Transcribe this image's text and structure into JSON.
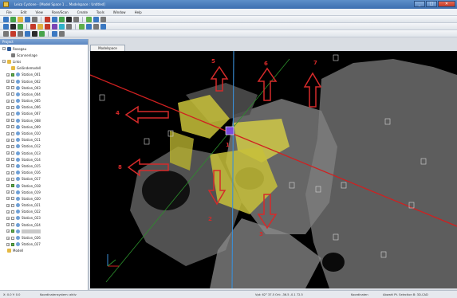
{
  "titlebar": {
    "title": "Leica Cyclone - [Model Space 1 ... Modelspace : Untitled]",
    "minimize": "_",
    "maximize": "□",
    "close": "✕"
  },
  "menu": [
    "File",
    "Edit",
    "View",
    "Rose/Scan",
    "Create",
    "Tools",
    "Window",
    "Help"
  ],
  "toolbar_colors": {
    "row1": [
      "#3a78c2",
      "#46a34a",
      "#e0b040",
      "#3a78c2",
      "#777777",
      "sep",
      "#c43a2a",
      "#3a78c2",
      "#46a34a",
      "#2b2b2b",
      "#777777",
      "sep",
      "#5fae4a",
      "#3a78c2",
      "#777777"
    ],
    "row2": [
      "#3a78c2",
      "#2b2b2b",
      "#46a34a",
      "sep",
      "#c43a2a",
      "#e0b040",
      "#c43a2a",
      "#7a44b5",
      "#2fb1c9",
      "#777777",
      "sep",
      "#5fae4a",
      "#3a78c2",
      "#777777",
      "#3a78c2"
    ],
    "row3": [
      "#777777",
      "#c43a2a",
      "#777777",
      "#3a78c2",
      "#2b2b2b",
      "#46a34a",
      "sep",
      "#3a78c2",
      "#777777"
    ]
  },
  "panel": {
    "title": "Project",
    "tree": [
      {
        "label": "Rosogau",
        "level": 0,
        "expander": "−",
        "icon": "proj",
        "check": null
      },
      {
        "label": "Scannenlage",
        "level": 1,
        "expander": "",
        "icon": "geo",
        "check": null
      },
      {
        "label": "Links",
        "level": 0,
        "expander": "−",
        "icon": "folder",
        "check": null
      },
      {
        "label": "Geländemodell",
        "level": 1,
        "expander": "",
        "icon": "folder",
        "check": null
      },
      {
        "label": "Station_001",
        "level": 1,
        "expander": "+",
        "icon": "scan",
        "check": true
      },
      {
        "label": "Station_002",
        "level": 1,
        "expander": "+",
        "icon": "scan",
        "check": false
      },
      {
        "label": "Station_003",
        "level": 1,
        "expander": "+",
        "icon": "scan",
        "check": false
      },
      {
        "label": "Station_004",
        "level": 1,
        "expander": "+",
        "icon": "scan",
        "check": false
      },
      {
        "label": "Station_005",
        "level": 1,
        "expander": "+",
        "icon": "scan",
        "check": false
      },
      {
        "label": "Station_006",
        "level": 1,
        "expander": "+",
        "icon": "scan",
        "check": false
      },
      {
        "label": "Station_007",
        "level": 1,
        "expander": "+",
        "icon": "scan",
        "check": false
      },
      {
        "label": "Station_008",
        "level": 1,
        "expander": "+",
        "icon": "scan",
        "check": false
      },
      {
        "label": "Station_009",
        "level": 1,
        "expander": "+",
        "icon": "scan",
        "check": false
      },
      {
        "label": "Station_010",
        "level": 1,
        "expander": "+",
        "icon": "scan",
        "check": false
      },
      {
        "label": "Station_011",
        "level": 1,
        "expander": "+",
        "icon": "scan",
        "check": false
      },
      {
        "label": "Station_012",
        "level": 1,
        "expander": "+",
        "icon": "scan",
        "check": false
      },
      {
        "label": "Station_013",
        "level": 1,
        "expander": "+",
        "icon": "scan",
        "check": false
      },
      {
        "label": "Station_014",
        "level": 1,
        "expander": "+",
        "icon": "scan",
        "check": false
      },
      {
        "label": "Station_015",
        "level": 1,
        "expander": "+",
        "icon": "scan",
        "check": false
      },
      {
        "label": "Station_016",
        "level": 1,
        "expander": "+",
        "icon": "scan",
        "check": false
      },
      {
        "label": "Station_017",
        "level": 1,
        "expander": "+",
        "icon": "scan",
        "check": false
      },
      {
        "label": "Station_018",
        "level": 1,
        "expander": "+",
        "icon": "scan",
        "check": true
      },
      {
        "label": "Station_019",
        "level": 1,
        "expander": "+",
        "icon": "scan",
        "check": false
      },
      {
        "label": "Station_020",
        "level": 1,
        "expander": "+",
        "icon": "scan",
        "check": false
      },
      {
        "label": "Station_021",
        "level": 1,
        "expander": "+",
        "icon": "scan",
        "check": false
      },
      {
        "label": "Station_022",
        "level": 1,
        "expander": "+",
        "icon": "scan",
        "check": false
      },
      {
        "label": "Station_023",
        "level": 1,
        "expander": "+",
        "icon": "scan",
        "check": false
      },
      {
        "label": "Station_024",
        "level": 1,
        "expander": "+",
        "icon": "scan",
        "check": false
      },
      {
        "label": "Station_025",
        "level": 1,
        "expander": "+",
        "icon": "scan",
        "check": true,
        "selected": true
      },
      {
        "label": "Station_026",
        "level": 1,
        "expander": "+",
        "icon": "scan",
        "check": false
      },
      {
        "label": "Station_027",
        "level": 1,
        "expander": "+",
        "icon": "scan",
        "check": true
      },
      {
        "label": "Modell",
        "level": 0,
        "expander": "",
        "icon": "folder",
        "check": null
      }
    ]
  },
  "viewport": {
    "tab_label": "Modelspace",
    "annotations": [
      "1",
      "2",
      "3",
      "4",
      "5",
      "6",
      "7",
      "8"
    ]
  },
  "status": {
    "left": "X: 0.0   Y: 0.0",
    "mid": "Koordinatensystem: aktiv",
    "coords": "Vpt: 62° 37.5  Ort: -36.5  -0.1  72.5",
    "mode": "Koordinaten",
    "right": "Abwahl  Pt. Selection  B: 3D-CAD"
  }
}
